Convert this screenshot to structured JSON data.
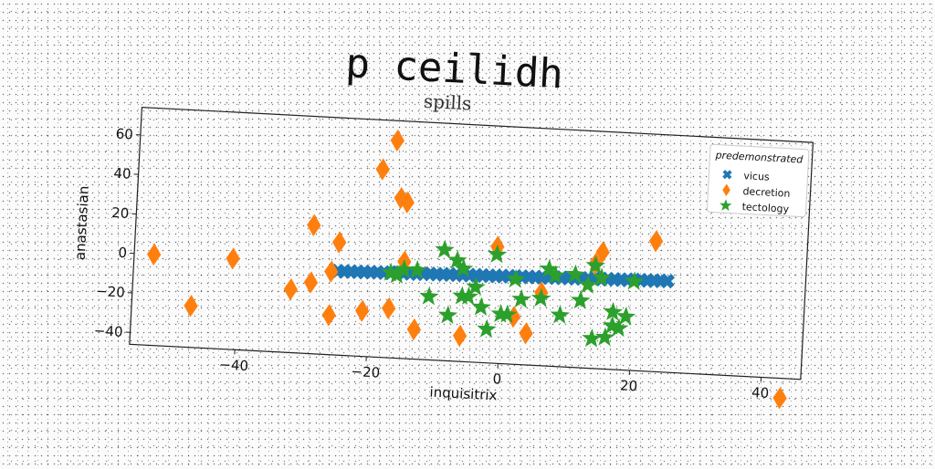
{
  "main_title": "p ceilidh",
  "chart_data": {
    "type": "scatter",
    "title": "spills",
    "xlabel": "inquisitrix",
    "ylabel": "anastasian",
    "xlim": [
      -56,
      46
    ],
    "ylim": [
      -46,
      74
    ],
    "xticks": [
      -40,
      -20,
      0,
      20,
      40
    ],
    "yticks": [
      -40,
      -20,
      0,
      20,
      40,
      60
    ],
    "grid": false,
    "legend": {
      "title": "predemonstrated",
      "position": "top-right"
    },
    "series": [
      {
        "name": "vicus",
        "marker": "x",
        "color": "#1f77b4",
        "x": [
          -25,
          -24,
          -23,
          -22,
          -21,
          -20,
          -19,
          -18,
          -17,
          -16,
          -15,
          -14,
          -13,
          -12,
          -11,
          -10,
          -9,
          -8,
          -7,
          -6,
          -5,
          -4,
          -3,
          -2,
          -1,
          0,
          1,
          2,
          3,
          4,
          5,
          6,
          7,
          8,
          9,
          10,
          11,
          12,
          13,
          14,
          15,
          16,
          17,
          18,
          19,
          20,
          21,
          22,
          23,
          24,
          25
        ],
        "y": [
          -3.6,
          -3.5,
          -3.4,
          -3.4,
          -3.3,
          -3.2,
          -3.1,
          -3.1,
          -3,
          -2.9,
          -2.8,
          -2.8,
          -2.7,
          -2.6,
          -2.5,
          -2.5,
          -2.4,
          -2.3,
          -2.2,
          -2.2,
          -2.1,
          -2,
          -1.9,
          -1.9,
          -1.8,
          -1.7,
          -1.6,
          -1.6,
          -1.5,
          -1.4,
          -1.3,
          -1.3,
          -1.2,
          -1.1,
          -1,
          -1,
          -0.9,
          -0.8,
          -0.7,
          -0.7,
          -0.6,
          -0.5,
          -0.4,
          -0.4,
          -0.3,
          -0.2,
          -0.1,
          -0.1,
          0,
          0.1,
          0.2
        ]
      },
      {
        "name": "decretion",
        "marker": "D",
        "color": "#ff7f0e",
        "x": [
          -53,
          -47,
          -41,
          -32,
          -29,
          -29,
          -26,
          -26,
          -25,
          -21,
          -19,
          -17,
          -17,
          -16,
          -15,
          -15,
          -13,
          -6,
          -1,
          2,
          4,
          6,
          14,
          15,
          23,
          43
        ],
        "y": [
          0,
          -25,
          0,
          -14,
          19,
          -10,
          -26,
          -4,
          11,
          -23,
          49,
          64,
          -21,
          35,
          33,
          3,
          -31,
          -33,
          13,
          -22,
          -30,
          -9,
          7,
          13,
          20,
          -56
        ]
      },
      {
        "name": "tectology",
        "marker": "*",
        "color": "#2ca02c",
        "x": [
          -17,
          -16,
          -15,
          -13,
          -11,
          -9,
          -8,
          -7,
          -6,
          -6,
          -5,
          -4,
          -3,
          -2,
          -1,
          0,
          1,
          2,
          3,
          6,
          7,
          8,
          9,
          11,
          12,
          13,
          14,
          14,
          15,
          16,
          17,
          17,
          18,
          19,
          20
        ],
        "y": [
          -3,
          -4,
          -1,
          -1,
          -14,
          10,
          -23,
          5,
          1,
          -13,
          -13,
          -8,
          -18,
          -29,
          9,
          -21,
          -21,
          -3,
          -13,
          -12,
          3,
          0,
          -20,
          1,
          -12,
          -4,
          -31,
          6,
          0,
          -30,
          -17,
          -24,
          -25,
          -19,
          -1
        ]
      }
    ]
  }
}
